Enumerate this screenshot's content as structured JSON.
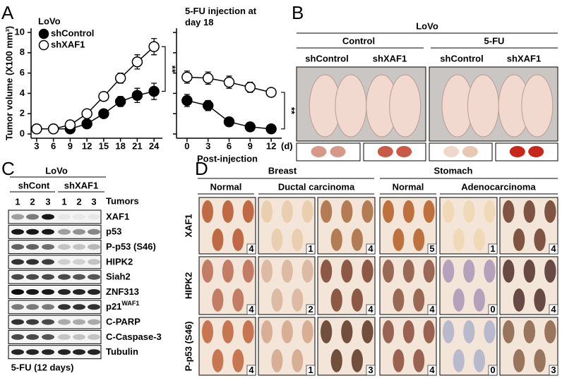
{
  "panel_labels": [
    "A",
    "B",
    "C",
    "D"
  ],
  "chart_data": [
    {
      "type": "line",
      "title": "LoVo",
      "y_label": "Tumor volume (X100 mm³)",
      "x": [
        3,
        6,
        9,
        12,
        15,
        18,
        21,
        24
      ],
      "xlim": [
        2,
        25.5
      ],
      "xticks": [
        3,
        6,
        9,
        12,
        15,
        18,
        21,
        24
      ],
      "ylim": [
        0,
        10
      ],
      "yticks": [
        0,
        2,
        4,
        6,
        8,
        10
      ],
      "series": [
        {
          "name": "shControl",
          "color": "#000000",
          "marker_fill": "#000000",
          "values": [
            0.5,
            0.5,
            0.5,
            1.0,
            2.0,
            3.2,
            3.8,
            4.2
          ],
          "errors": [
            0.1,
            0.1,
            0.1,
            0.3,
            0.3,
            0.5,
            0.7,
            0.8
          ]
        },
        {
          "name": "shXAF1",
          "color": "#000000",
          "marker_fill": "#ffffff",
          "values": [
            0.5,
            0.5,
            0.9,
            2.0,
            3.7,
            5.5,
            7.1,
            8.6
          ],
          "errors": [
            0.1,
            0.1,
            0.2,
            0.3,
            0.3,
            0.5,
            0.7,
            0.8
          ]
        }
      ],
      "annotation": "**"
    },
    {
      "type": "line",
      "title": "5-FU injection at day 18",
      "x_label": "Post-injection",
      "x_unit": "(d)",
      "x": [
        0,
        3,
        6,
        9,
        12
      ],
      "xlim": [
        -1.5,
        13.5
      ],
      "xticks": [
        0,
        3,
        6,
        9,
        12
      ],
      "ylim": [
        0,
        10
      ],
      "series": [
        {
          "name": "shXAF1",
          "color": "#000000",
          "marker_fill": "#ffffff",
          "values": [
            5.6,
            5.5,
            5.1,
            4.6,
            4.1
          ],
          "errors": [
            0.6,
            0.6,
            0.6,
            0.5,
            0.4
          ]
        },
        {
          "name": "shControl",
          "color": "#000000",
          "marker_fill": "#000000",
          "values": [
            3.3,
            2.8,
            1.2,
            0.7,
            0.5
          ],
          "errors": [
            0.6,
            0.5,
            0.3,
            0.2,
            0.2
          ]
        }
      ],
      "annotation": "**"
    }
  ],
  "panel_b": {
    "title": "LoVo",
    "groups": [
      "Control",
      "5-FU"
    ],
    "columns": [
      "shControl",
      "shXAF1",
      "shControl",
      "shXAF1"
    ]
  },
  "panel_c": {
    "title": "LoVo",
    "groups": [
      "shCont",
      "shXAF1"
    ],
    "tumors_label": "Tumors",
    "lanes": [
      "1",
      "2",
      "3",
      "1",
      "2",
      "3"
    ],
    "bands": [
      "XAF1",
      "p53",
      "P-p53 (S46)",
      "HIPK2",
      "Siah2",
      "ZNF313",
      "p21",
      "C-PARP",
      "C-Caspase-3",
      "Tubulin"
    ],
    "band_superscript": "WAF1",
    "footer": "5-FU (12 days)"
  },
  "panel_d": {
    "tissues": [
      "Breast",
      "Stomach"
    ],
    "columns": [
      "Normal",
      "Ductal carcinoma",
      "Normal",
      "Adenocarcinoma"
    ],
    "rows": [
      "XAF1",
      "HIPK2",
      "P-p53 (S46)"
    ],
    "scores": [
      [
        4,
        1,
        4,
        5,
        1,
        4
      ],
      [
        4,
        2,
        4,
        4,
        0,
        4
      ],
      [
        4,
        1,
        3,
        4,
        0,
        3
      ]
    ]
  }
}
